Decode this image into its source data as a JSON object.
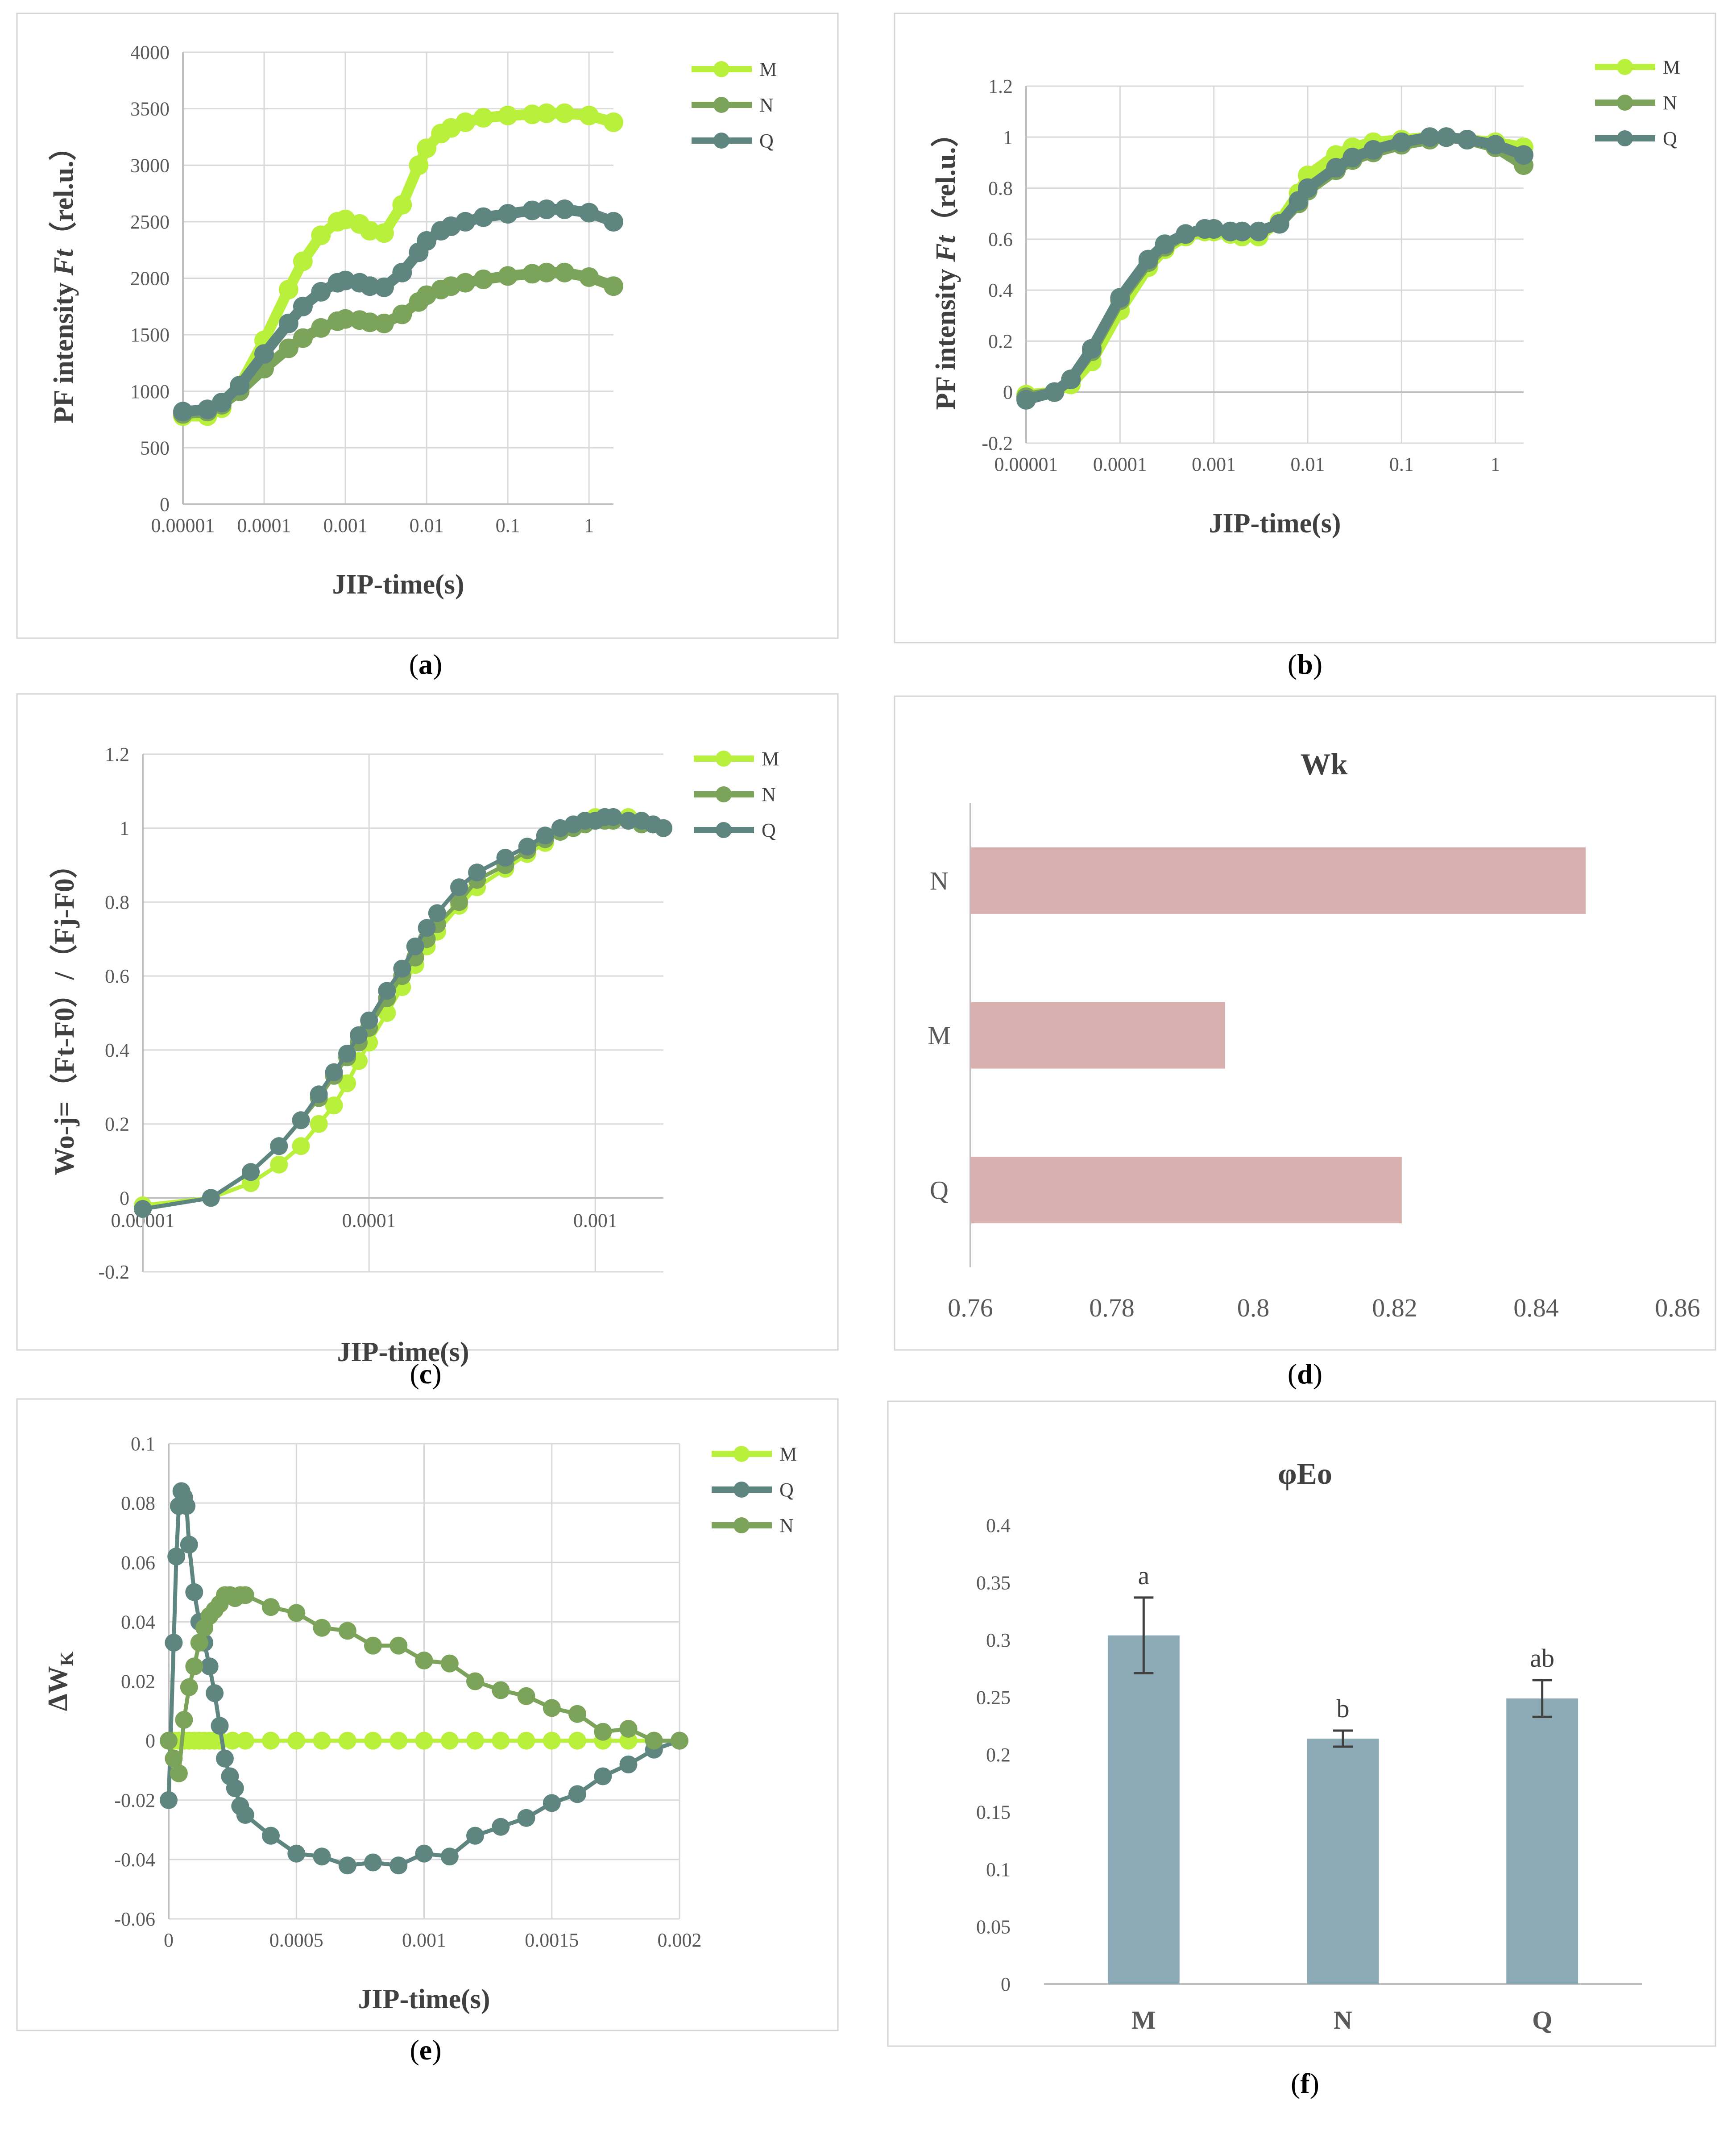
{
  "colors": {
    "M": "#b9f03c",
    "N": "#7ba35a",
    "Q": "#5f8580",
    "bar_d": "#d8b0b0",
    "bar_f": "#8ca9b6"
  },
  "chart_data": [
    {
      "id": "a",
      "caption": "a",
      "type": "line",
      "xscale": "log",
      "xlim": [
        1e-05,
        2
      ],
      "ylim": [
        0,
        4000
      ],
      "xticks": [
        1e-05,
        0.0001,
        0.001,
        0.01,
        0.1,
        1
      ],
      "xtick_labels": [
        "0.00001",
        "0.0001",
        "0.001",
        "0.01",
        "0.1",
        "1"
      ],
      "yticks": [
        0,
        500,
        1000,
        1500,
        2000,
        2500,
        3000,
        3500,
        4000
      ],
      "ytick_labels": [
        "0",
        "500",
        "1000",
        "1500",
        "2000",
        "2500",
        "3000",
        "3500",
        "4000"
      ],
      "xlabel": "JIP-time(s)",
      "ylabel_pre": "PF intensity ",
      "ylabel_ital": "Ft",
      "ylabel_post": "（rel.u.）",
      "legend_labels": [
        "M",
        "N",
        "Q"
      ],
      "series": [
        {
          "name": "M",
          "x": [
            1e-05,
            2e-05,
            3e-05,
            5e-05,
            0.0001,
            0.0002,
            0.0003,
            0.0005,
            0.0008,
            0.001,
            0.0015,
            0.002,
            0.003,
            0.005,
            0.008,
            0.01,
            0.015,
            0.02,
            0.03,
            0.05,
            0.1,
            0.2,
            0.3,
            0.5,
            1,
            2
          ],
          "y": [
            780,
            780,
            850,
            1050,
            1450,
            1900,
            2150,
            2380,
            2500,
            2520,
            2480,
            2420,
            2400,
            2650,
            3000,
            3150,
            3280,
            3330,
            3380,
            3420,
            3440,
            3450,
            3460,
            3460,
            3440,
            3380
          ]
        },
        {
          "name": "N",
          "x": [
            1e-05,
            2e-05,
            3e-05,
            5e-05,
            0.0001,
            0.0002,
            0.0003,
            0.0005,
            0.0008,
            0.001,
            0.0015,
            0.002,
            0.003,
            0.005,
            0.008,
            0.01,
            0.015,
            0.02,
            0.03,
            0.05,
            0.1,
            0.2,
            0.3,
            0.5,
            1,
            2
          ],
          "y": [
            800,
            820,
            880,
            1000,
            1200,
            1380,
            1470,
            1560,
            1620,
            1640,
            1630,
            1610,
            1600,
            1680,
            1790,
            1850,
            1900,
            1930,
            1960,
            1990,
            2020,
            2040,
            2050,
            2050,
            2010,
            1930
          ]
        },
        {
          "name": "Q",
          "x": [
            1e-05,
            2e-05,
            3e-05,
            5e-05,
            0.0001,
            0.0002,
            0.0003,
            0.0005,
            0.0008,
            0.001,
            0.0015,
            0.002,
            0.003,
            0.005,
            0.008,
            0.01,
            0.015,
            0.02,
            0.03,
            0.05,
            0.1,
            0.2,
            0.3,
            0.5,
            1,
            2
          ],
          "y": [
            820,
            840,
            900,
            1050,
            1330,
            1600,
            1750,
            1880,
            1960,
            1980,
            1960,
            1930,
            1920,
            2050,
            2230,
            2330,
            2420,
            2460,
            2500,
            2540,
            2570,
            2600,
            2610,
            2610,
            2580,
            2500
          ]
        }
      ]
    },
    {
      "id": "b",
      "caption": "b",
      "type": "line",
      "xscale": "log",
      "xlim": [
        1e-05,
        2
      ],
      "ylim": [
        -0.2,
        1.2
      ],
      "xticks": [
        1e-05,
        0.0001,
        0.001,
        0.01,
        0.1,
        1
      ],
      "xtick_labels": [
        "0.00001",
        "0.0001",
        "0.001",
        "0.01",
        "0.1",
        "1"
      ],
      "yticks": [
        -0.2,
        0,
        0.2,
        0.4,
        0.6,
        0.8,
        1,
        1.2
      ],
      "ytick_labels": [
        "-0.2",
        "0",
        "0.2",
        "0.4",
        "0.6",
        "0.8",
        "1",
        "1.2"
      ],
      "xlabel": "JIP-time(s)",
      "ylabel_pre": "PF intensity ",
      "ylabel_ital": "Ft",
      "ylabel_post": "（rel.u.）",
      "legend_labels": [
        "M",
        "N",
        "Q"
      ],
      "series": [
        {
          "name": "M",
          "x": [
            1e-05,
            2e-05,
            3e-05,
            5e-05,
            0.0001,
            0.0002,
            0.0003,
            0.0005,
            0.0008,
            0.001,
            0.0015,
            0.002,
            0.003,
            0.005,
            0.008,
            0.01,
            0.02,
            0.03,
            0.05,
            0.1,
            0.2,
            0.3,
            0.5,
            1,
            2
          ],
          "y": [
            -0.01,
            0,
            0.03,
            0.12,
            0.32,
            0.49,
            0.56,
            0.61,
            0.63,
            0.63,
            0.62,
            0.61,
            0.61,
            0.67,
            0.78,
            0.85,
            0.93,
            0.96,
            0.98,
            0.99,
            1.0,
            1.0,
            0.99,
            0.98,
            0.96
          ]
        },
        {
          "name": "N",
          "x": [
            1e-05,
            2e-05,
            3e-05,
            5e-05,
            0.0001,
            0.0002,
            0.0003,
            0.0005,
            0.0008,
            0.001,
            0.0015,
            0.002,
            0.003,
            0.005,
            0.008,
            0.01,
            0.02,
            0.03,
            0.05,
            0.1,
            0.2,
            0.3,
            0.5,
            1,
            2
          ],
          "y": [
            -0.02,
            0,
            0.05,
            0.16,
            0.36,
            0.51,
            0.57,
            0.62,
            0.64,
            0.64,
            0.63,
            0.63,
            0.63,
            0.66,
            0.74,
            0.79,
            0.87,
            0.91,
            0.94,
            0.97,
            0.99,
            1.0,
            0.99,
            0.96,
            0.89
          ]
        },
        {
          "name": "Q",
          "x": [
            1e-05,
            2e-05,
            3e-05,
            5e-05,
            0.0001,
            0.0002,
            0.0003,
            0.0005,
            0.0008,
            0.001,
            0.0015,
            0.002,
            0.003,
            0.005,
            0.008,
            0.01,
            0.02,
            0.03,
            0.05,
            0.1,
            0.2,
            0.3,
            0.5,
            1,
            2
          ],
          "y": [
            -0.03,
            0,
            0.05,
            0.17,
            0.37,
            0.52,
            0.58,
            0.62,
            0.64,
            0.64,
            0.63,
            0.63,
            0.63,
            0.66,
            0.75,
            0.8,
            0.88,
            0.92,
            0.95,
            0.98,
            1.0,
            1.0,
            0.99,
            0.97,
            0.93
          ]
        }
      ]
    },
    {
      "id": "c",
      "caption": "c",
      "type": "line",
      "xscale": "log",
      "xlim": [
        1e-05,
        0.002
      ],
      "ylim": [
        -0.2,
        1.2
      ],
      "xticks": [
        1e-05,
        0.0001,
        0.001
      ],
      "xtick_labels": [
        "0.00001",
        "0.0001",
        "0.001"
      ],
      "yticks": [
        -0.2,
        0,
        0.2,
        0.4,
        0.6,
        0.8,
        1,
        1.2
      ],
      "ytick_labels": [
        "-0.2",
        "0",
        "0.2",
        "0.4",
        "0.6",
        "0.8",
        "1",
        "1.2"
      ],
      "xlabel": "JIP-time(s)",
      "ylabel_pre": "Wo-j=（Ft-F0）/（Fj-F0）",
      "ylabel_ital": "",
      "ylabel_post": "",
      "legend_labels": [
        "M",
        "N",
        "Q"
      ],
      "series": [
        {
          "name": "M",
          "x": [
            1e-05,
            2e-05,
            3e-05,
            4e-05,
            5e-05,
            6e-05,
            7e-05,
            8e-05,
            9e-05,
            0.0001,
            0.00012,
            0.00014,
            0.00016,
            0.00018,
            0.0002,
            0.00025,
            0.0003,
            0.0004,
            0.0005,
            0.0006,
            0.0007,
            0.0008,
            0.0009,
            0.001,
            0.0011,
            0.0012,
            0.0014,
            0.0016,
            0.0018,
            0.002
          ],
          "y": [
            -0.02,
            0,
            0.04,
            0.09,
            0.14,
            0.2,
            0.25,
            0.31,
            0.37,
            0.42,
            0.5,
            0.57,
            0.63,
            0.68,
            0.72,
            0.79,
            0.84,
            0.89,
            0.93,
            0.96,
            0.99,
            1.01,
            1.02,
            1.03,
            1.03,
            1.03,
            1.03,
            1.02,
            1.01,
            1.0
          ]
        },
        {
          "name": "N",
          "x": [
            1e-05,
            2e-05,
            3e-05,
            4e-05,
            5e-05,
            6e-05,
            7e-05,
            8e-05,
            9e-05,
            0.0001,
            0.00012,
            0.00014,
            0.00016,
            0.00018,
            0.0002,
            0.00025,
            0.0003,
            0.0004,
            0.0005,
            0.0006,
            0.0007,
            0.0008,
            0.0009,
            0.001,
            0.0011,
            0.0012,
            0.0014,
            0.0016,
            0.0018,
            0.002
          ],
          "y": [
            -0.03,
            0,
            0.07,
            0.14,
            0.21,
            0.27,
            0.33,
            0.38,
            0.42,
            0.46,
            0.54,
            0.6,
            0.65,
            0.7,
            0.74,
            0.8,
            0.86,
            0.9,
            0.94,
            0.97,
            0.99,
            1.0,
            1.01,
            1.02,
            1.02,
            1.02,
            1.02,
            1.01,
            1.01,
            1.0
          ]
        },
        {
          "name": "Q",
          "x": [
            1e-05,
            2e-05,
            3e-05,
            4e-05,
            5e-05,
            6e-05,
            7e-05,
            8e-05,
            9e-05,
            0.0001,
            0.00012,
            0.00014,
            0.00016,
            0.00018,
            0.0002,
            0.00025,
            0.0003,
            0.0004,
            0.0005,
            0.0006,
            0.0007,
            0.0008,
            0.0009,
            0.001,
            0.0011,
            0.0012,
            0.0014,
            0.0016,
            0.0018,
            0.002
          ],
          "y": [
            -0.03,
            0,
            0.07,
            0.14,
            0.21,
            0.28,
            0.34,
            0.39,
            0.44,
            0.48,
            0.56,
            0.62,
            0.68,
            0.73,
            0.77,
            0.84,
            0.88,
            0.92,
            0.95,
            0.98,
            1.0,
            1.01,
            1.02,
            1.02,
            1.03,
            1.03,
            1.02,
            1.02,
            1.01,
            1.0
          ]
        }
      ]
    },
    {
      "id": "d",
      "caption": "d",
      "type": "bar",
      "orientation": "horizontal",
      "title": "Wk",
      "categories": [
        "N",
        "M",
        "Q"
      ],
      "values": [
        0.847,
        0.796,
        0.821
      ],
      "xlim": [
        0.76,
        0.86
      ],
      "xticks": [
        0.76,
        0.78,
        0.8,
        0.82,
        0.84,
        0.86
      ],
      "xtick_labels": [
        "0.76",
        "0.78",
        "0.8",
        "0.82",
        "0.84",
        "0.86"
      ]
    },
    {
      "id": "e",
      "caption": "e",
      "type": "line",
      "xscale": "linear",
      "xlim": [
        0,
        0.002
      ],
      "ylim": [
        -0.06,
        0.1
      ],
      "xticks": [
        0,
        0.0005,
        0.001,
        0.0015,
        0.002
      ],
      "xtick_labels": [
        "0",
        "0.0005",
        "0.001",
        "0.0015",
        "0.002"
      ],
      "yticks": [
        -0.06,
        -0.04,
        -0.02,
        0,
        0.02,
        0.04,
        0.06,
        0.08,
        0.1
      ],
      "ytick_labels": [
        "-0.06",
        "-0.04",
        "-0.02",
        "0",
        "0.02",
        "0.04",
        "0.06",
        "0.08",
        "0.1"
      ],
      "xlabel": "JIP-time(s)",
      "ylabel_main": "ΔW",
      "ylabel_sub": "K",
      "legend_labels": [
        "M",
        "Q",
        "N"
      ],
      "series": [
        {
          "name": "M",
          "x": [
            0,
            2e-05,
            4e-05,
            6e-05,
            8e-05,
            0.0001,
            0.00012,
            0.00014,
            0.00016,
            0.00018,
            0.0002,
            0.00025,
            0.0003,
            0.0004,
            0.0005,
            0.0006,
            0.0007,
            0.0008,
            0.0009,
            0.001,
            0.0011,
            0.0012,
            0.0013,
            0.0014,
            0.0015,
            0.0016,
            0.0017,
            0.0018,
            0.0019,
            0.002
          ],
          "y": [
            0,
            0,
            0,
            0,
            0,
            0,
            0,
            0,
            0,
            0,
            0,
            0,
            0,
            0,
            0,
            0,
            0,
            0,
            0,
            0,
            0,
            0,
            0,
            0,
            0,
            0,
            0,
            0,
            0,
            0
          ]
        },
        {
          "name": "Q",
          "x": [
            0,
            2e-05,
            3e-05,
            4e-05,
            5e-05,
            6e-05,
            7e-05,
            8e-05,
            0.0001,
            0.00012,
            0.00014,
            0.00016,
            0.00018,
            0.0002,
            0.00022,
            0.00024,
            0.00026,
            0.00028,
            0.0003,
            0.0004,
            0.0005,
            0.0006,
            0.0007,
            0.0008,
            0.0009,
            0.001,
            0.0011,
            0.0012,
            0.0013,
            0.0014,
            0.0015,
            0.0016,
            0.0017,
            0.0018,
            0.0019,
            0.002
          ],
          "y": [
            -0.02,
            0.033,
            0.062,
            0.079,
            0.084,
            0.082,
            0.079,
            0.066,
            0.05,
            0.04,
            0.033,
            0.025,
            0.016,
            0.005,
            -0.006,
            -0.012,
            -0.016,
            -0.022,
            -0.025,
            -0.032,
            -0.038,
            -0.039,
            -0.042,
            -0.041,
            -0.042,
            -0.038,
            -0.039,
            -0.032,
            -0.029,
            -0.026,
            -0.021,
            -0.018,
            -0.012,
            -0.008,
            -0.003,
            0
          ]
        },
        {
          "name": "N",
          "x": [
            0,
            2e-05,
            4e-05,
            6e-05,
            8e-05,
            0.0001,
            0.00012,
            0.00014,
            0.00016,
            0.00018,
            0.0002,
            0.00022,
            0.00024,
            0.00026,
            0.00028,
            0.0003,
            0.0004,
            0.0005,
            0.0006,
            0.0007,
            0.0008,
            0.0009,
            0.001,
            0.0011,
            0.0012,
            0.0013,
            0.0014,
            0.0015,
            0.0016,
            0.0017,
            0.0018,
            0.0019,
            0.002
          ],
          "y": [
            0,
            -0.006,
            -0.011,
            0.007,
            0.018,
            0.025,
            0.033,
            0.038,
            0.042,
            0.044,
            0.046,
            0.049,
            0.049,
            0.048,
            0.049,
            0.049,
            0.045,
            0.043,
            0.038,
            0.037,
            0.032,
            0.032,
            0.027,
            0.026,
            0.02,
            0.017,
            0.015,
            0.011,
            0.009,
            0.003,
            0.004,
            0,
            0
          ]
        }
      ]
    },
    {
      "id": "f",
      "caption": "f",
      "type": "bar",
      "orientation": "vertical",
      "title": "φEo",
      "categories": [
        "M",
        "N",
        "Q"
      ],
      "values": [
        0.304,
        0.214,
        0.249
      ],
      "errors": [
        0.033,
        0.007,
        0.016
      ],
      "significance": [
        "a",
        "b",
        "ab"
      ],
      "ylim": [
        0,
        0.4
      ],
      "yticks": [
        0,
        0.05,
        0.1,
        0.15,
        0.2,
        0.25,
        0.3,
        0.35,
        0.4
      ],
      "ytick_labels": [
        "0",
        "0.05",
        "0.1",
        "0.15",
        "0.2",
        "0.25",
        "0.3",
        "0.35",
        "0.4"
      ]
    }
  ]
}
